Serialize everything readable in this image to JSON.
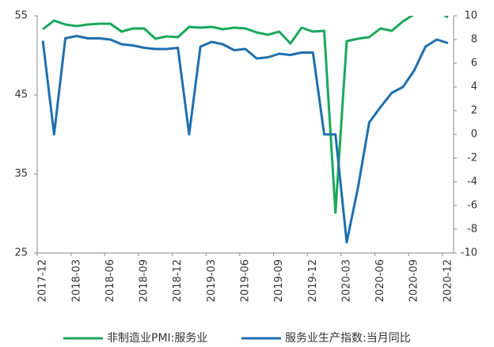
{
  "chart_data": {
    "type": "line",
    "categories": [
      "2017-12",
      null,
      null,
      "2018-03",
      null,
      null,
      "2018-06",
      null,
      null,
      "2018-09",
      null,
      null,
      "2018-12",
      null,
      null,
      "2019-03",
      null,
      null,
      "2019-06",
      null,
      null,
      "2019-09",
      null,
      null,
      "2019-12",
      null,
      null,
      "2020-03",
      null,
      null,
      "2020-06",
      null,
      null,
      "2020-09",
      null,
      null,
      "2020-12"
    ],
    "series": [
      {
        "name": "非制造业PMI:服务业",
        "color": "#1aa85a",
        "axis": "y",
        "values": [
          53.3,
          54.4,
          53.9,
          53.7,
          53.9,
          54.0,
          54.0,
          53.0,
          53.4,
          53.4,
          52.1,
          52.4,
          52.3,
          53.6,
          53.5,
          53.6,
          53.3,
          53.5,
          53.4,
          52.9,
          52.6,
          53.0,
          51.5,
          53.5,
          53.0,
          53.1,
          30.1,
          51.8,
          52.1,
          52.3,
          53.4,
          53.1,
          54.3,
          55.2,
          55.5,
          55.7,
          54.8
        ]
      },
      {
        "name": "服务业生产指数:当月同比",
        "color": "#1f6fae",
        "axis": "y2",
        "values": [
          7.9,
          0,
          8.1,
          8.3,
          8.1,
          8.1,
          8.0,
          7.6,
          7.5,
          7.3,
          7.2,
          7.2,
          7.3,
          0,
          7.4,
          7.8,
          7.6,
          7.1,
          7.2,
          6.4,
          6.5,
          6.8,
          6.7,
          6.9,
          6.9,
          0,
          0,
          -9.1,
          -4.5,
          1.0,
          2.3,
          3.5,
          4.0,
          5.4,
          7.4,
          8.0,
          7.7
        ]
      }
    ],
    "ylim": [
      25,
      55
    ],
    "yticks": [
      25,
      35,
      45,
      55
    ],
    "y2lim": [
      -10,
      10
    ],
    "y2ticks": [
      -10,
      -8,
      -6,
      -4,
      -2,
      0,
      2,
      4,
      6,
      8,
      10
    ],
    "grid": false,
    "legend": "bottom"
  }
}
